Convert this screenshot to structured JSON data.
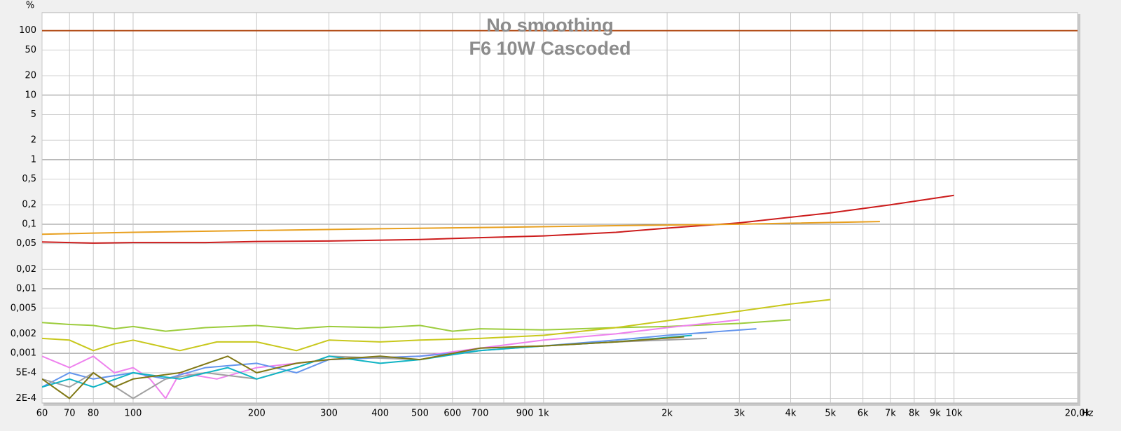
{
  "chart_data": {
    "type": "line",
    "title": "No smoothing",
    "subtitle": "F6 10W Cascoded",
    "xlabel": "Hz",
    "ylabel": "%",
    "xscale": "log",
    "yscale": "log",
    "grid": true,
    "xlim": [
      60,
      20000
    ],
    "ylim": [
      0.00017,
      190
    ],
    "xticks": [
      60,
      70,
      80,
      100,
      200,
      300,
      400,
      500,
      600,
      700,
      900,
      {
        "value": 1000,
        "label": "1k"
      },
      {
        "value": 2000,
        "label": "2k"
      },
      {
        "value": 3000,
        "label": "3k"
      },
      {
        "value": 4000,
        "label": "4k"
      },
      {
        "value": 5000,
        "label": "5k"
      },
      {
        "value": 6000,
        "label": "6k"
      },
      {
        "value": 7000,
        "label": "7k"
      },
      {
        "value": 8000,
        "label": "8k"
      },
      {
        "value": 9000,
        "label": "9k"
      },
      {
        "value": 10000,
        "label": "10k"
      },
      {
        "value": 20000,
        "label": "20,0k"
      }
    ],
    "xgrid_minor": [
      90,
      800
    ],
    "yticks": [
      100,
      50,
      20,
      10,
      5,
      2,
      1,
      {
        "value": 0.5,
        "label": "0,5"
      },
      {
        "value": 0.2,
        "label": "0,2"
      },
      {
        "value": 0.1,
        "label": "0,1"
      },
      {
        "value": 0.05,
        "label": "0,05"
      },
      {
        "value": 0.02,
        "label": "0,02"
      },
      {
        "value": 0.01,
        "label": "0,01"
      },
      {
        "value": 0.005,
        "label": "0,005"
      },
      {
        "value": 0.002,
        "label": "0,002"
      },
      {
        "value": 0.001,
        "label": "0,001"
      },
      {
        "value": 0.0005,
        "label": "5E-4"
      },
      {
        "value": 0.0002,
        "label": "2E-4"
      }
    ],
    "series": [
      {
        "color": "#b4501c",
        "x": [
          60,
          20000
        ],
        "values": [
          100,
          100
        ]
      },
      {
        "color": "#cc1c1c",
        "x": [
          60,
          80,
          100,
          150,
          200,
          300,
          500,
          700,
          1000,
          1500,
          2000,
          3000,
          5000,
          7000,
          10000
        ],
        "values": [
          0.053,
          0.051,
          0.052,
          0.052,
          0.054,
          0.055,
          0.058,
          0.062,
          0.066,
          0.075,
          0.087,
          0.105,
          0.15,
          0.2,
          0.28
        ]
      },
      {
        "color": "#e8a020",
        "x": [
          60,
          100,
          200,
          400,
          800,
          1500,
          3000,
          6600
        ],
        "values": [
          0.07,
          0.075,
          0.08,
          0.085,
          0.09,
          0.095,
          0.1,
          0.11
        ]
      },
      {
        "color": "#9ccc3c",
        "x": [
          60,
          70,
          80,
          90,
          100,
          120,
          150,
          200,
          250,
          300,
          400,
          500,
          600,
          700,
          1000,
          1500,
          2000,
          3000,
          4000
        ],
        "values": [
          0.003,
          0.0028,
          0.0027,
          0.0024,
          0.0026,
          0.0022,
          0.0025,
          0.0027,
          0.0024,
          0.0026,
          0.0025,
          0.0027,
          0.0022,
          0.0024,
          0.0023,
          0.0025,
          0.0026,
          0.0029,
          0.0033
        ]
      },
      {
        "color": "#c8c81c",
        "x": [
          60,
          70,
          80,
          90,
          100,
          130,
          160,
          200,
          250,
          300,
          400,
          500,
          700,
          1000,
          1500,
          2000,
          3000,
          4000,
          5000
        ],
        "values": [
          0.0017,
          0.0016,
          0.0011,
          0.0014,
          0.0016,
          0.0011,
          0.0015,
          0.0015,
          0.0011,
          0.0016,
          0.0015,
          0.0016,
          0.0017,
          0.0019,
          0.0025,
          0.0032,
          0.0045,
          0.0058,
          0.0068
        ]
      },
      {
        "color": "#ee82ee",
        "x": [
          60,
          70,
          80,
          90,
          100,
          110,
          120,
          130,
          160,
          200,
          300,
          500,
          700,
          1000,
          1500,
          2000,
          3000
        ],
        "values": [
          0.0009,
          0.0006,
          0.0009,
          0.0005,
          0.0006,
          0.0004,
          0.0002,
          0.0005,
          0.0004,
          0.0006,
          0.0008,
          0.0009,
          0.0012,
          0.0016,
          0.002,
          0.0025,
          0.0033
        ]
      },
      {
        "color": "#6495ed",
        "x": [
          60,
          70,
          80,
          100,
          120,
          150,
          200,
          250,
          300,
          500,
          700,
          1000,
          1500,
          2000,
          3300
        ],
        "values": [
          0.0003,
          0.0005,
          0.0004,
          0.0005,
          0.0004,
          0.0006,
          0.0007,
          0.0005,
          0.0008,
          0.0009,
          0.0011,
          0.0013,
          0.0016,
          0.0019,
          0.0024
        ]
      },
      {
        "color": "#a0a0a0",
        "x": [
          60,
          70,
          80,
          100,
          120,
          150,
          200,
          250,
          300,
          500,
          700,
          1000,
          1500,
          2500
        ],
        "values": [
          0.0004,
          0.0003,
          0.0005,
          0.0002,
          0.0004,
          0.0005,
          0.0004,
          0.0006,
          0.0009,
          0.0008,
          0.0012,
          0.0013,
          0.0015,
          0.0017
        ]
      },
      {
        "color": "#10b4c4",
        "x": [
          60,
          70,
          80,
          100,
          130,
          170,
          200,
          250,
          300,
          400,
          500,
          700,
          1000,
          1500,
          2300
        ],
        "values": [
          0.0003,
          0.0004,
          0.0003,
          0.0005,
          0.0004,
          0.0006,
          0.0004,
          0.0006,
          0.0009,
          0.0007,
          0.0008,
          0.0011,
          0.0013,
          0.0015,
          0.0019
        ]
      },
      {
        "color": "#807814",
        "x": [
          60,
          70,
          80,
          90,
          100,
          130,
          170,
          200,
          250,
          300,
          400,
          500,
          700,
          1000,
          1500,
          2200
        ],
        "values": [
          0.0004,
          0.0002,
          0.0005,
          0.0003,
          0.0004,
          0.0005,
          0.0009,
          0.0005,
          0.0007,
          0.0008,
          0.0009,
          0.0008,
          0.0012,
          0.0013,
          0.0015,
          0.0018
        ]
      }
    ]
  }
}
